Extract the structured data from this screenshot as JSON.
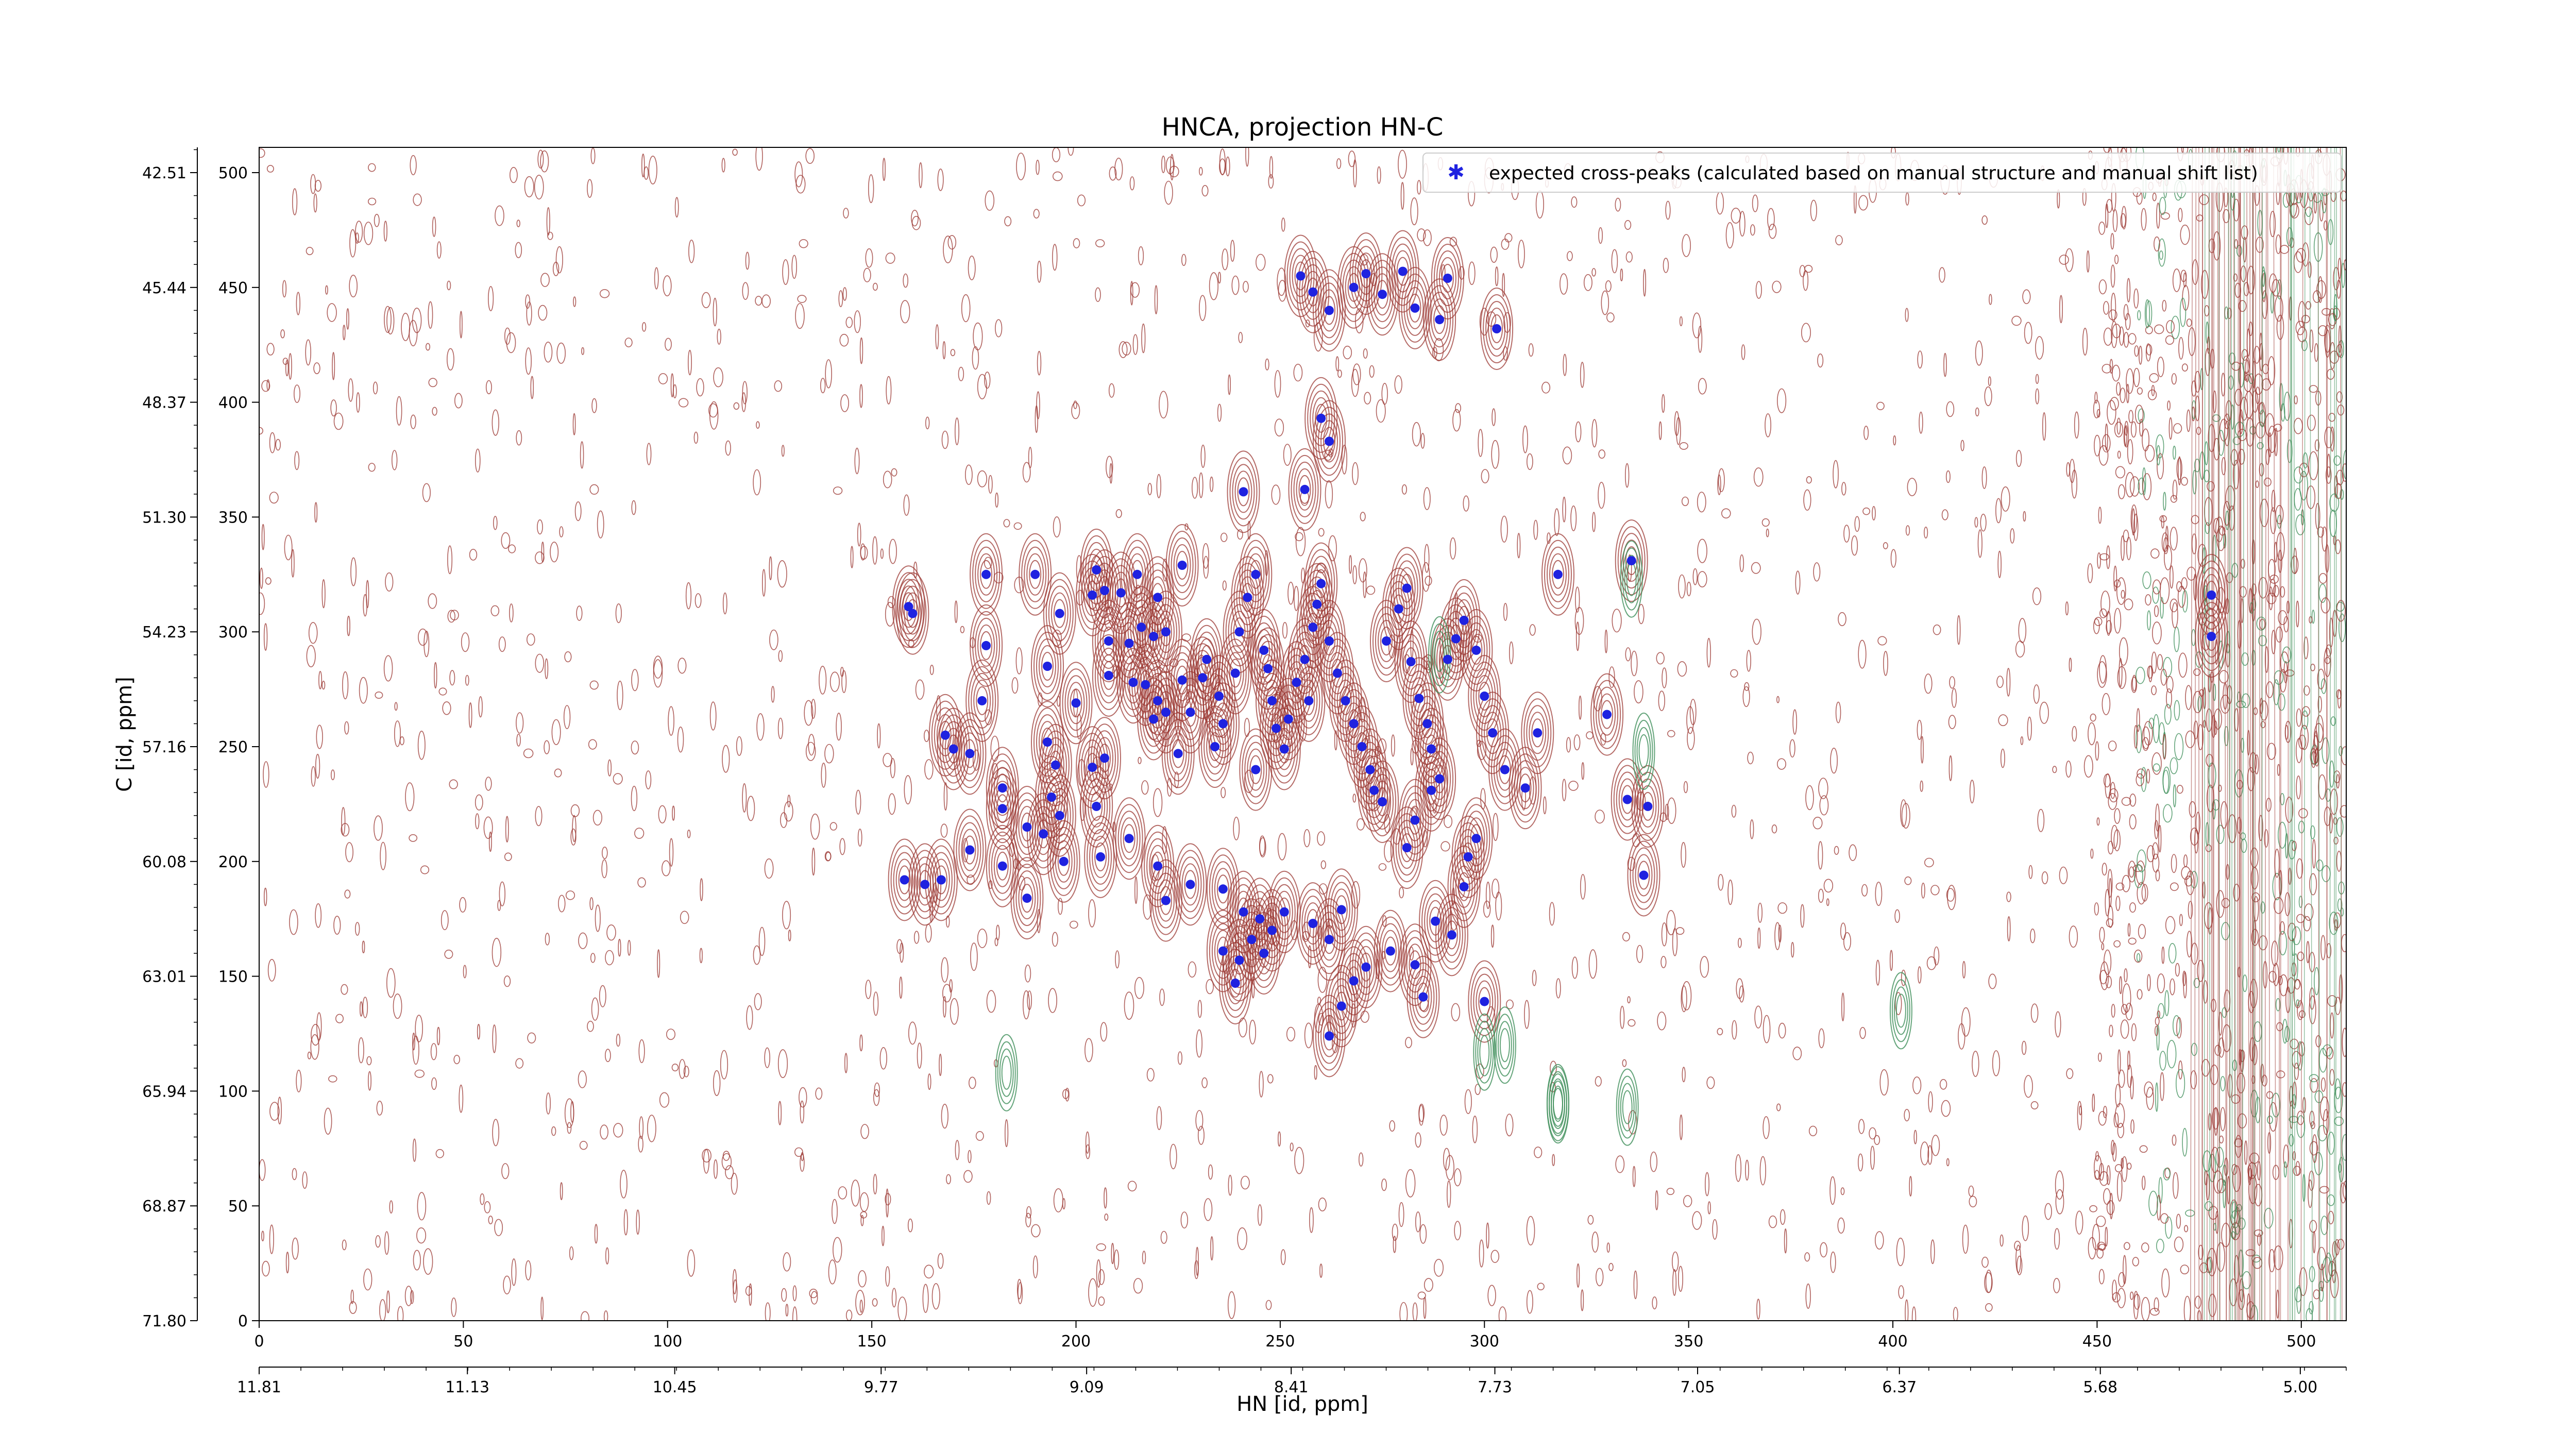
{
  "chart_data": {
    "type": "scatter",
    "title": "HNCA, projection HN-C",
    "xlabel": "HN [id, ppm]",
    "ylabel": "C [id, ppm]",
    "xlim": [
      0,
      511
    ],
    "ylim": [
      0,
      511
    ],
    "x_ticks_index": [
      "0",
      "50",
      "100",
      "150",
      "200",
      "250",
      "300",
      "350",
      "400",
      "450",
      "500"
    ],
    "x_ticks_ppm": [
      "11.81",
      "11.13",
      "10.45",
      "9.77",
      "9.09",
      "8.41",
      "7.73",
      "7.05",
      "6.37",
      "5.68",
      "5.00"
    ],
    "y_ticks_index": [
      "0",
      "50",
      "100",
      "150",
      "200",
      "250",
      "300",
      "350",
      "400",
      "450",
      "500"
    ],
    "y_ticks_ppm": [
      "71.80",
      "68.87",
      "65.94",
      "63.01",
      "60.08",
      "57.16",
      "54.23",
      "51.30",
      "48.37",
      "45.44",
      "42.51"
    ],
    "grid": false,
    "legend_position": "top-right",
    "colors": {
      "peaks": "#1f22e0",
      "positive_contours": "#9c3a34",
      "negative_contours": "#3f8f5a"
    },
    "series": [
      {
        "name": "expected cross-peaks (calculated based on manual structure and manual shift list)",
        "points": [
          [
            159,
            311
          ],
          [
            178,
            325
          ],
          [
            178,
            294
          ],
          [
            177,
            270
          ],
          [
            190,
            325
          ],
          [
            196,
            308
          ],
          [
            193,
            285
          ],
          [
            193,
            252
          ],
          [
            195,
            242
          ],
          [
            194,
            228
          ],
          [
            192,
            212
          ],
          [
            197,
            200
          ],
          [
            188,
            184
          ],
          [
            205,
            327
          ],
          [
            207,
            318
          ],
          [
            208,
            296
          ],
          [
            204,
            316
          ],
          [
            211,
            317
          ],
          [
            213,
            295
          ],
          [
            215,
            325
          ],
          [
            208,
            281
          ],
          [
            214,
            278
          ],
          [
            216,
            302
          ],
          [
            220,
            315
          ],
          [
            226,
            329
          ],
          [
            222,
            300
          ],
          [
            220,
            270
          ],
          [
            219,
            262
          ],
          [
            222,
            265
          ],
          [
            225,
            247
          ],
          [
            228,
            265
          ],
          [
            231,
            280
          ],
          [
            232,
            288
          ],
          [
            235,
            272
          ],
          [
            236,
            260
          ],
          [
            239,
            282
          ],
          [
            240,
            300
          ],
          [
            242,
            315
          ],
          [
            244,
            325
          ],
          [
            246,
            292
          ],
          [
            247,
            284
          ],
          [
            248,
            270
          ],
          [
            249,
            258
          ],
          [
            251,
            249
          ],
          [
            252,
            262
          ],
          [
            254,
            278
          ],
          [
            256,
            288
          ],
          [
            258,
            302
          ],
          [
            259,
            312
          ],
          [
            260,
            321
          ],
          [
            262,
            296
          ],
          [
            264,
            282
          ],
          [
            266,
            270
          ],
          [
            268,
            260
          ],
          [
            270,
            250
          ],
          [
            272,
            240
          ],
          [
            275,
            226
          ],
          [
            276,
            296
          ],
          [
            279,
            310
          ],
          [
            281,
            319
          ],
          [
            282,
            287
          ],
          [
            284,
            271
          ],
          [
            286,
            260
          ],
          [
            287,
            249
          ],
          [
            289,
            236
          ],
          [
            291,
            288
          ],
          [
            293,
            297
          ],
          [
            295,
            305
          ],
          [
            298,
            292
          ],
          [
            300,
            272
          ],
          [
            302,
            256
          ],
          [
            305,
            240
          ],
          [
            257,
            270
          ],
          [
            244,
            240
          ],
          [
            234,
            250
          ],
          [
            226,
            279
          ],
          [
            219,
            298
          ],
          [
            217,
            277
          ],
          [
            207,
            245
          ],
          [
            204,
            241
          ],
          [
            200,
            269
          ],
          [
            174,
            247
          ],
          [
            168,
            255
          ],
          [
            170,
            249
          ],
          [
            163,
            190
          ],
          [
            158,
            192
          ],
          [
            167,
            192
          ],
          [
            174,
            205
          ],
          [
            182,
            198
          ],
          [
            188,
            215
          ],
          [
            182,
            232
          ],
          [
            196,
            220
          ],
          [
            205,
            224
          ],
          [
            206,
            202
          ],
          [
            213,
            210
          ],
          [
            220,
            198
          ],
          [
            222,
            183
          ],
          [
            228,
            190
          ],
          [
            236,
            188
          ],
          [
            241,
            178
          ],
          [
            245,
            175
          ],
          [
            246,
            160
          ],
          [
            240,
            157
          ],
          [
            239,
            147
          ],
          [
            236,
            161
          ],
          [
            243,
            166
          ],
          [
            248,
            170
          ],
          [
            251,
            178
          ],
          [
            258,
            173
          ],
          [
            262,
            166
          ],
          [
            265,
            179
          ],
          [
            268,
            148
          ],
          [
            265,
            137
          ],
          [
            262,
            124
          ],
          [
            271,
            154
          ],
          [
            277,
            161
          ],
          [
            283,
            155
          ],
          [
            285,
            141
          ],
          [
            288,
            174
          ],
          [
            292,
            168
          ],
          [
            295,
            189
          ],
          [
            296,
            202
          ],
          [
            298,
            210
          ],
          [
            300,
            139
          ],
          [
            310,
            232
          ],
          [
            313,
            256
          ],
          [
            318,
            325
          ],
          [
            330,
            264
          ],
          [
            335,
            227
          ],
          [
            340,
            224
          ],
          [
            339,
            194
          ],
          [
            336,
            331
          ],
          [
            287,
            231
          ],
          [
            283,
            218
          ],
          [
            281,
            206
          ],
          [
            273,
            231
          ],
          [
            255,
            455
          ],
          [
            258,
            448
          ],
          [
            262,
            440
          ],
          [
            268,
            450
          ],
          [
            271,
            456
          ],
          [
            275,
            447
          ],
          [
            280,
            457
          ],
          [
            283,
            441
          ],
          [
            291,
            454
          ],
          [
            289,
            436
          ],
          [
            303,
            432
          ],
          [
            241,
            361
          ],
          [
            256,
            362
          ],
          [
            262,
            383
          ],
          [
            260,
            393
          ],
          [
            478,
            316
          ],
          [
            478,
            298
          ],
          [
            182,
            223
          ],
          [
            160,
            308
          ]
        ]
      }
    ]
  }
}
